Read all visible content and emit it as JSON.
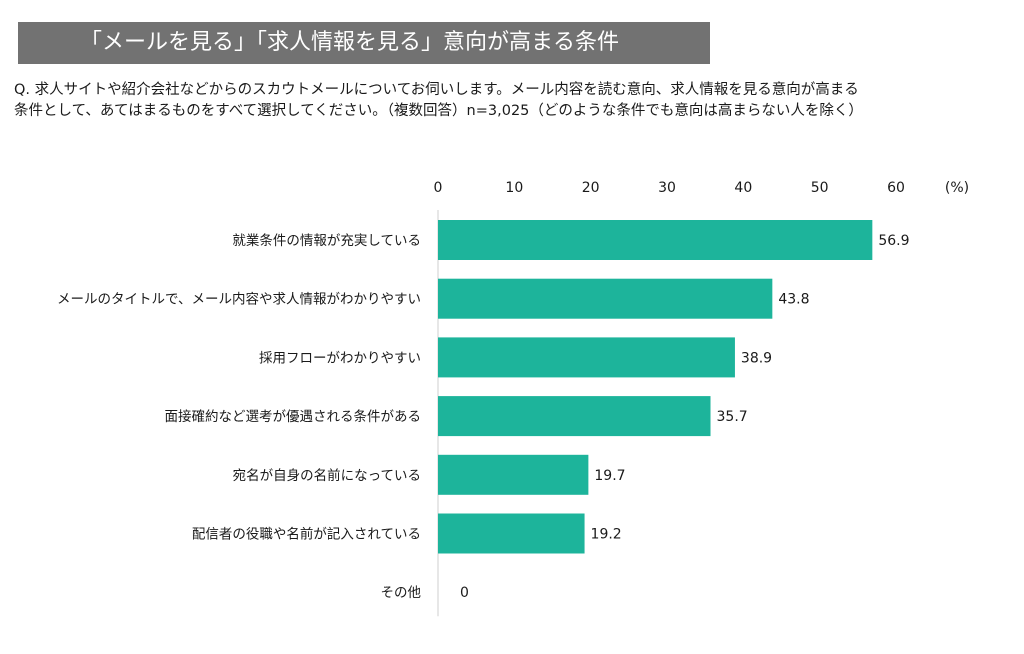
{
  "header": {
    "title": "「メールを見る」「求人情報を見る」意向が高まる条件"
  },
  "question": {
    "line1": "Q.  求人サイトや紹介会社などからのスカウトメールについてお伺いします。メール内容を読む意向、求人情報を見る意向が高まる",
    "line2": "条件として、あてはまるものをすべて選択してください。（複数回答）n=3,025（どのような条件でも意向は高まらない人を除く）"
  },
  "chart_data": {
    "type": "bar",
    "orientation": "horizontal",
    "unit_label": "(%)",
    "xlim": [
      0,
      60
    ],
    "xticks": [
      "0",
      "10",
      "20",
      "30",
      "40",
      "50",
      "60"
    ],
    "grid": false,
    "categories": [
      "就業条件の情報が充実している",
      "メールのタイトルで、メール内容や求人情報がわかりやすい",
      "採用フローがわかりやすい",
      "面接確約など選考が優遇される条件がある",
      "宛名が自身の名前になっている",
      "配信者の役職や名前が記入されている",
      "その他"
    ],
    "values": [
      56.9,
      43.8,
      38.9,
      35.7,
      19.7,
      19.2,
      0
    ],
    "value_labels": [
      "56.9",
      "43.8",
      "38.9",
      "35.7",
      "19.7",
      "19.2",
      "0"
    ],
    "bar_color": "#1db49b"
  }
}
